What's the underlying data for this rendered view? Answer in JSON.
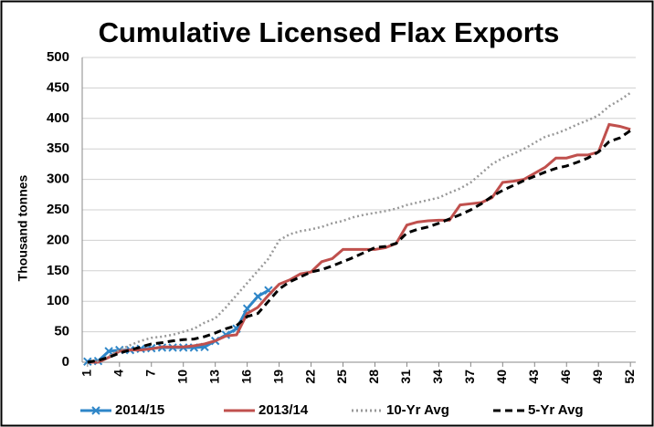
{
  "chart_data": {
    "type": "line",
    "title": "Cumulative Licensed Flax Exports",
    "y_label": "Thousand tonnes",
    "x": [
      1,
      2,
      3,
      4,
      5,
      6,
      7,
      8,
      9,
      10,
      11,
      12,
      13,
      14,
      15,
      16,
      17,
      18,
      19,
      20,
      21,
      22,
      23,
      24,
      25,
      26,
      27,
      28,
      29,
      30,
      31,
      32,
      33,
      34,
      35,
      36,
      37,
      38,
      39,
      40,
      41,
      42,
      43,
      44,
      45,
      46,
      47,
      48,
      49,
      50,
      51,
      52
    ],
    "xlim": [
      0.5,
      52.5
    ],
    "xticks": [
      1,
      4,
      7,
      10,
      13,
      16,
      19,
      22,
      25,
      28,
      31,
      34,
      37,
      40,
      43,
      46,
      49,
      52
    ],
    "ylim": [
      0,
      500
    ],
    "yticks": [
      0,
      50,
      100,
      150,
      200,
      250,
      300,
      350,
      400,
      450,
      500
    ],
    "grid": true,
    "legend": "bottom",
    "series": [
      {
        "name": "2014/15",
        "color": "#2e86c8",
        "style": "solid",
        "marker": "x",
        "values": [
          1,
          2,
          18,
          20,
          20,
          22,
          23,
          24,
          24,
          24,
          24,
          25,
          35,
          45,
          55,
          88,
          108,
          118,
          null,
          null,
          null,
          null,
          null,
          null,
          null,
          null,
          null,
          null,
          null,
          null,
          null,
          null,
          null,
          null,
          null,
          null,
          null,
          null,
          null,
          null,
          null,
          null,
          null,
          null,
          null,
          null,
          null,
          null,
          null,
          null,
          null,
          null
        ]
      },
      {
        "name": "2013/14",
        "color": "#c0504d",
        "style": "solid",
        "values": [
          0,
          0,
          8,
          18,
          20,
          20,
          22,
          25,
          25,
          25,
          27,
          30,
          35,
          43,
          45,
          80,
          90,
          110,
          128,
          135,
          145,
          148,
          165,
          170,
          185,
          185,
          185,
          185,
          188,
          195,
          225,
          230,
          232,
          233,
          233,
          258,
          260,
          262,
          270,
          295,
          297,
          300,
          310,
          320,
          335,
          335,
          340,
          340,
          345,
          390,
          387,
          382
        ]
      },
      {
        "name": "10-Yr Avg",
        "color": "#999999",
        "style": "dotted",
        "values": [
          0,
          2,
          10,
          20,
          28,
          35,
          40,
          42,
          45,
          50,
          55,
          65,
          72,
          90,
          110,
          130,
          150,
          170,
          200,
          210,
          215,
          218,
          222,
          228,
          232,
          238,
          242,
          245,
          248,
          252,
          258,
          262,
          266,
          270,
          278,
          285,
          295,
          310,
          325,
          335,
          342,
          350,
          360,
          370,
          375,
          382,
          390,
          397,
          405,
          420,
          430,
          442
        ]
      },
      {
        "name": "5-Yr Avg",
        "color": "#000000",
        "style": "dashed",
        "values": [
          0,
          3,
          8,
          15,
          20,
          25,
          30,
          32,
          35,
          37,
          38,
          42,
          48,
          55,
          60,
          75,
          80,
          100,
          120,
          132,
          140,
          148,
          152,
          158,
          165,
          172,
          180,
          188,
          190,
          195,
          212,
          218,
          222,
          228,
          235,
          242,
          250,
          260,
          272,
          282,
          290,
          298,
          305,
          312,
          318,
          322,
          328,
          335,
          345,
          362,
          368,
          380
        ]
      }
    ]
  }
}
